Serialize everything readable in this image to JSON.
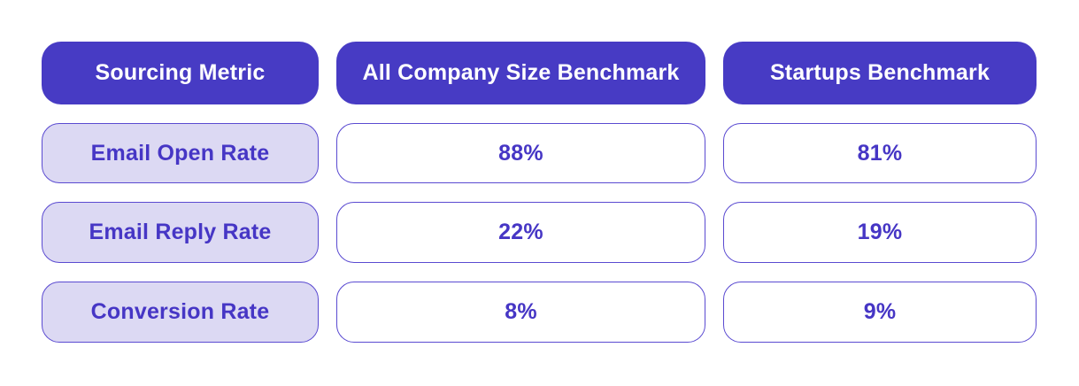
{
  "chart_data": {
    "type": "table",
    "title": "",
    "columns": [
      "Sourcing Metric",
      "All Company Size Benchmark",
      "Startups Benchmark"
    ],
    "rows": [
      [
        "Email Open Rate",
        "88%",
        "81%"
      ],
      [
        "Email Reply Rate",
        "22%",
        "19%"
      ],
      [
        "Conversion Rate",
        "8%",
        "9%"
      ]
    ],
    "numeric_values": {
      "email_open_rate": {
        "all_company_size": 88,
        "startups": 81
      },
      "email_reply_rate": {
        "all_company_size": 22,
        "startups": 19
      },
      "conversion_rate": {
        "all_company_size": 8,
        "startups": 9
      }
    }
  },
  "colors": {
    "header_background": "#473BC4",
    "header_text": "#FFFFFF",
    "metric_cell_background": "#DCD9F3",
    "cell_border": "#5A4AD1",
    "cell_text": "#4636C5",
    "card_background": "#FFFFFF"
  }
}
